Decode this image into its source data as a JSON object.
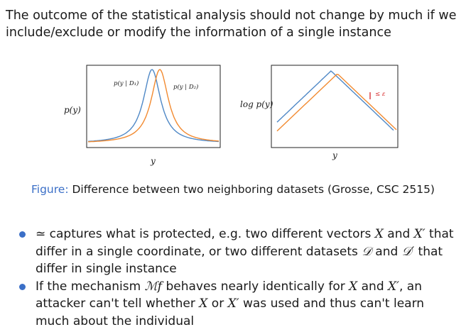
{
  "intro": "The outcome of the statistical analysis should not change by much if we include/exclude or modify the information of a single instance",
  "figure": {
    "left": {
      "ylabel": "p(y)",
      "xlabel": "y",
      "curve1_label": "p(y | D₁)",
      "curve2_label": "p(y | D₂)"
    },
    "right": {
      "ylabel": "log p(y)",
      "xlabel": "y",
      "annotation": "≤ ε"
    },
    "colors": {
      "curve1": "#4f88c6",
      "curve2": "#f28a30",
      "arrow": "#d62728"
    }
  },
  "caption": {
    "lead": "Figure:",
    "text": " Difference between two neighboring datasets (Grosse, CSC 2515)"
  },
  "bullets": [
    {
      "parts": [
        "≃ captures what is protected, e.g. two different vectors ",
        "X",
        " and ",
        "X′",
        " that differ in a single coordinate, or two different datasets ",
        "𝒟",
        " and ",
        "𝒟′",
        " that differ in single instance"
      ]
    },
    {
      "parts": [
        "If the mechanism ",
        "ℳf",
        " behaves nearly identically for ",
        "X",
        " and ",
        "X′",
        ", an attacker can't tell whether ",
        "X",
        " or ",
        "X′",
        " was used and thus can't learn much about the individual"
      ]
    }
  ]
}
